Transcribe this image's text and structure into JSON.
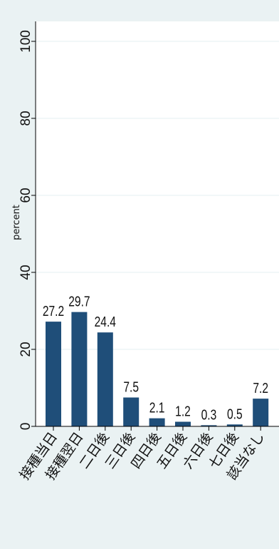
{
  "chart_data": {
    "type": "bar",
    "categories": [
      "接種当日",
      "接種翌日",
      "二日後",
      "三日後",
      "四日後",
      "五日後",
      "六日後",
      "七日後",
      "該当なし"
    ],
    "values": [
      27.2,
      29.7,
      24.4,
      7.5,
      2.1,
      1.2,
      0.3,
      0.5,
      7.2
    ],
    "value_labels": [
      "27.2",
      "29.7",
      "24.4",
      "7.5",
      "2.1",
      "1.2",
      "0.3",
      "0.5",
      "7.2"
    ],
    "ylabel": "percent",
    "ylim": [
      0,
      100
    ],
    "yticks": [
      0,
      20,
      40,
      60,
      80,
      100
    ],
    "grid": true,
    "legend": "none",
    "colors": {
      "bar": "#1f4e79",
      "plot_background": "#ffffff",
      "outer_background": "#eaf2f3",
      "grid": "#eaf2f3"
    }
  }
}
